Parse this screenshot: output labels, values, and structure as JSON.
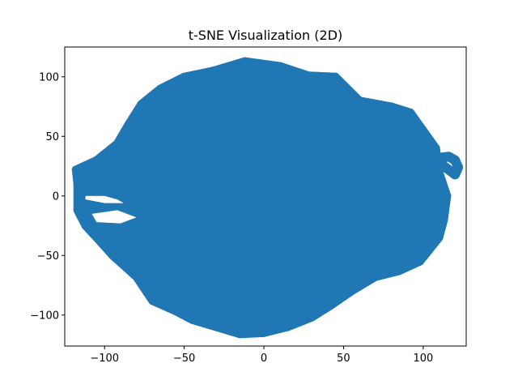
{
  "chart_data": {
    "type": "scatter",
    "title": "t-SNE Visualization (2D)",
    "xlabel": "",
    "ylabel": "",
    "xlim": [
      -125,
      127
    ],
    "ylim": [
      -126,
      125
    ],
    "x_ticks": [
      -100,
      -50,
      0,
      50,
      100
    ],
    "y_ticks": [
      -100,
      -50,
      0,
      50,
      100
    ],
    "x_tick_labels": [
      "−100",
      "−50",
      "0",
      "50",
      "100"
    ],
    "y_tick_labels": [
      "−100",
      "−50",
      "0",
      "50",
      "100"
    ],
    "grid": false,
    "legend": "none",
    "color": "#1f77b4",
    "series": [
      {
        "main_cloud_boundary": [
          [
            -12,
            113
          ],
          [
            10,
            109
          ],
          [
            28,
            101
          ],
          [
            45,
            100
          ],
          [
            60,
            80
          ],
          [
            80,
            75
          ],
          [
            92,
            70
          ],
          [
            100,
            55
          ],
          [
            108,
            40
          ],
          [
            110,
            20
          ],
          [
            115,
            0
          ],
          [
            113,
            -20
          ],
          [
            110,
            -35
          ],
          [
            98,
            -55
          ],
          [
            85,
            -63
          ],
          [
            70,
            -68
          ],
          [
            55,
            -80
          ],
          [
            42,
            -92
          ],
          [
            30,
            -102
          ],
          [
            15,
            -110
          ],
          [
            0,
            -115
          ],
          [
            -15,
            -116
          ],
          [
            -30,
            -110
          ],
          [
            -45,
            -104
          ],
          [
            -55,
            -97
          ],
          [
            -70,
            -88
          ],
          [
            -80,
            -68
          ],
          [
            -95,
            -50
          ],
          [
            -103,
            -38
          ],
          [
            -112,
            -25
          ],
          [
            -117,
            -12
          ],
          [
            -117,
            10
          ],
          [
            -118,
            22
          ],
          [
            -105,
            30
          ],
          [
            -92,
            44
          ],
          [
            -85,
            60
          ],
          [
            -77,
            77
          ],
          [
            -65,
            90
          ],
          [
            -50,
            100
          ],
          [
            -32,
            105
          ]
        ],
        "right_arm": [
          [
            105,
            20
          ],
          [
            107,
            28
          ],
          [
            110,
            32
          ],
          [
            116,
            33
          ],
          [
            120,
            30
          ],
          [
            122,
            24
          ],
          [
            120,
            18
          ],
          [
            116,
            22
          ],
          [
            112,
            26
          ],
          [
            106,
            12
          ]
        ],
        "notch_left": [
          [
            -112,
            0
          ],
          [
            -100,
            0
          ],
          [
            -92,
            -3
          ],
          [
            -88,
            -6
          ],
          [
            -100,
            -6
          ],
          [
            -112,
            -3
          ]
        ],
        "notch_mid": [
          [
            -108,
            -15
          ],
          [
            -92,
            -12
          ],
          [
            -80,
            -18
          ],
          [
            -90,
            -23
          ],
          [
            -105,
            -22
          ]
        ]
      }
    ]
  }
}
